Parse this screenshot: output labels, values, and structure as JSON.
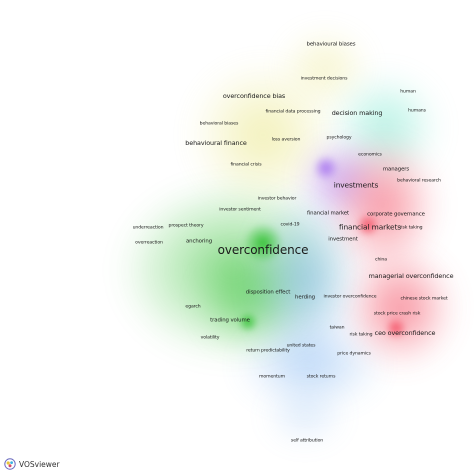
{
  "logo": {
    "text": "VOSviewer",
    "icon": "vosviewer-logo-icon"
  },
  "clusters": [
    {
      "id": "yellow",
      "color": "#e2de5c"
    },
    {
      "id": "cyan",
      "color": "#63e3c6"
    },
    {
      "id": "purple",
      "color": "#a978ef"
    },
    {
      "id": "red",
      "color": "#f45468"
    },
    {
      "id": "green",
      "color": "#36c236"
    },
    {
      "id": "blue",
      "color": "#6aa8ee"
    }
  ],
  "terms": [
    {
      "id": "behavioural-biases-top",
      "label": "behavioural biases",
      "cluster": "yellow",
      "weight": 2
    },
    {
      "id": "investment-decisions",
      "label": "investment decisions",
      "cluster": "yellow",
      "weight": 1
    },
    {
      "id": "overconfidence-bias",
      "label": "overconfidence bias",
      "cluster": "yellow",
      "weight": 3
    },
    {
      "id": "financial-data-processing",
      "label": "financial data processing",
      "cluster": "yellow",
      "weight": 1
    },
    {
      "id": "behavioral-biases",
      "label": "behavioral biases",
      "cluster": "yellow",
      "weight": 1
    },
    {
      "id": "behavioural-finance",
      "label": "behavioural finance",
      "cluster": "yellow",
      "weight": 3
    },
    {
      "id": "loss-aversion",
      "label": "loss aversion",
      "cluster": "yellow",
      "weight": 1
    },
    {
      "id": "psychology",
      "label": "psychology",
      "cluster": "yellow",
      "weight": 1
    },
    {
      "id": "financial-crisis",
      "label": "financial crisis",
      "cluster": "yellow",
      "weight": 1
    },
    {
      "id": "decision-making",
      "label": "decision making",
      "cluster": "cyan",
      "weight": 3
    },
    {
      "id": "human",
      "label": "human",
      "cluster": "cyan",
      "weight": 1
    },
    {
      "id": "humans",
      "label": "humans",
      "cluster": "cyan",
      "weight": 1
    },
    {
      "id": "economics",
      "label": "economics",
      "cluster": "purple",
      "weight": 1
    },
    {
      "id": "managers",
      "label": "managers",
      "cluster": "red",
      "weight": 2
    },
    {
      "id": "behavioral-research",
      "label": "behavioral research",
      "cluster": "red",
      "weight": 1
    },
    {
      "id": "investments",
      "label": "investments",
      "cluster": "purple",
      "weight": 3
    },
    {
      "id": "investor-behavior",
      "label": "investor behavior",
      "cluster": "purple",
      "weight": 1
    },
    {
      "id": "corporate-governance",
      "label": "corporate governance",
      "cluster": "red",
      "weight": 2
    },
    {
      "id": "financial-market",
      "label": "financial market",
      "cluster": "purple",
      "weight": 2
    },
    {
      "id": "investor-sentiment",
      "label": "investor sentiment",
      "cluster": "green",
      "weight": 1
    },
    {
      "id": "financial-markets",
      "label": "financial markets",
      "cluster": "red",
      "weight": 3
    },
    {
      "id": "risk-taking-top",
      "label": "risk taking",
      "cluster": "red",
      "weight": 1
    },
    {
      "id": "underreaction",
      "label": "underreaction",
      "cluster": "green",
      "weight": 1
    },
    {
      "id": "prospect-theory",
      "label": "prospect theory",
      "cluster": "green",
      "weight": 1
    },
    {
      "id": "covid-19",
      "label": "covid-19",
      "cluster": "blue",
      "weight": 1
    },
    {
      "id": "overreaction",
      "label": "overreaction",
      "cluster": "green",
      "weight": 1
    },
    {
      "id": "anchoring",
      "label": "anchoring",
      "cluster": "green",
      "weight": 2
    },
    {
      "id": "investment",
      "label": "investment",
      "cluster": "blue",
      "weight": 2
    },
    {
      "id": "overconfidence",
      "label": "overconfidence",
      "cluster": "green",
      "weight": 5
    },
    {
      "id": "china",
      "label": "china",
      "cluster": "red",
      "weight": 1
    },
    {
      "id": "managerial-overconfidence",
      "label": "managerial overconfidence",
      "cluster": "red",
      "weight": 3
    },
    {
      "id": "disposition-effect",
      "label": "disposition effect",
      "cluster": "green",
      "weight": 2
    },
    {
      "id": "herding",
      "label": "herding",
      "cluster": "blue",
      "weight": 2
    },
    {
      "id": "investor-overconfidence",
      "label": "investor overconfidence",
      "cluster": "blue",
      "weight": 2
    },
    {
      "id": "chinese-stock-market",
      "label": "chinese stock market",
      "cluster": "red",
      "weight": 1
    },
    {
      "id": "egarch",
      "label": "egarch",
      "cluster": "green",
      "weight": 1
    },
    {
      "id": "stock-price-crash-risk",
      "label": "stock price crash risk",
      "cluster": "red",
      "weight": 1
    },
    {
      "id": "trading-volume",
      "label": "trading volume",
      "cluster": "green",
      "weight": 2
    },
    {
      "id": "taiwan",
      "label": "taiwan",
      "cluster": "blue",
      "weight": 1
    },
    {
      "id": "ceo-overconfidence",
      "label": "ceo overconfidence",
      "cluster": "red",
      "weight": 2
    },
    {
      "id": "risk-taking",
      "label": "risk taking",
      "cluster": "blue",
      "weight": 1
    },
    {
      "id": "volatility",
      "label": "volatility",
      "cluster": "green",
      "weight": 1
    },
    {
      "id": "united-states",
      "label": "united states",
      "cluster": "blue",
      "weight": 1
    },
    {
      "id": "return-predictability",
      "label": "return predictability",
      "cluster": "blue",
      "weight": 1
    },
    {
      "id": "price-dynamics",
      "label": "price dynamics",
      "cluster": "blue",
      "weight": 1
    },
    {
      "id": "momentum",
      "label": "momentum",
      "cluster": "blue",
      "weight": 1
    },
    {
      "id": "stock-returns",
      "label": "stock returns",
      "cluster": "blue",
      "weight": 1
    },
    {
      "id": "self-attribution",
      "label": "self attribution",
      "cluster": "blue",
      "weight": 1
    }
  ]
}
